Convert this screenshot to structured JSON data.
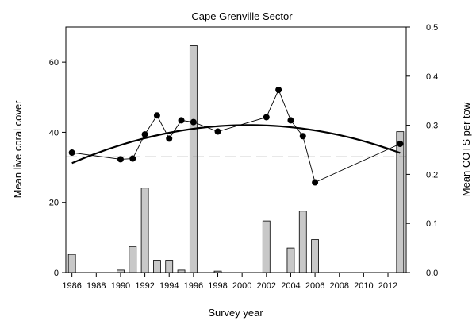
{
  "chart_data": {
    "type": "bar+line",
    "title": "Cape Grenville Sector",
    "xlabel": "Survey year",
    "ylabel_left": "Mean live coral cover",
    "ylabel_right": "Mean COTS per tow",
    "xlim": [
      1985.5,
      2013.5
    ],
    "x_ticks": [
      1986,
      1988,
      1990,
      1992,
      1994,
      1996,
      1998,
      2000,
      2002,
      2004,
      2006,
      2008,
      2010,
      2012
    ],
    "ylim_left": [
      0,
      70
    ],
    "y_ticks_left": [
      0,
      20,
      40,
      60
    ],
    "ylim_right": [
      0,
      0.5
    ],
    "y_ticks_right": [
      "0.0",
      "0.1",
      "0.2",
      "0.3",
      "0.4",
      "0.5"
    ],
    "bars": {
      "name": "Mean COTS per tow",
      "axis": "right",
      "color": "#c8c8c8",
      "x": [
        1986,
        1990,
        1991,
        1992,
        1993,
        1994,
        1995,
        1996,
        1998,
        2002,
        2004,
        2005,
        2006,
        2013
      ],
      "values": [
        0.037,
        0.005,
        0.053,
        0.172,
        0.025,
        0.025,
        0.005,
        0.462,
        0.003,
        0.105,
        0.05,
        0.125,
        0.067,
        0.287
      ]
    },
    "line": {
      "name": "Mean live coral cover",
      "axis": "left",
      "color": "#000000",
      "x": [
        1986,
        1990,
        1991,
        1992,
        1993,
        1994,
        1995,
        1996,
        1998,
        2002,
        2003,
        2004,
        2005,
        2006,
        2013
      ],
      "values": [
        34.2,
        32.3,
        32.5,
        39.4,
        44.8,
        38.2,
        43.4,
        42.9,
        40.2,
        44.3,
        52.1,
        43.4,
        38.9,
        25.7,
        36.7
      ]
    },
    "trend": {
      "type": "quadratic",
      "axis": "left",
      "x_start": 1986,
      "x_end": 2013,
      "points": [
        [
          1986,
          31.2
        ],
        [
          1999.5,
          42.0
        ],
        [
          2013,
          34.1
        ]
      ]
    },
    "reference_line": {
      "axis": "left",
      "value": 33.0,
      "style": "dashed"
    }
  }
}
